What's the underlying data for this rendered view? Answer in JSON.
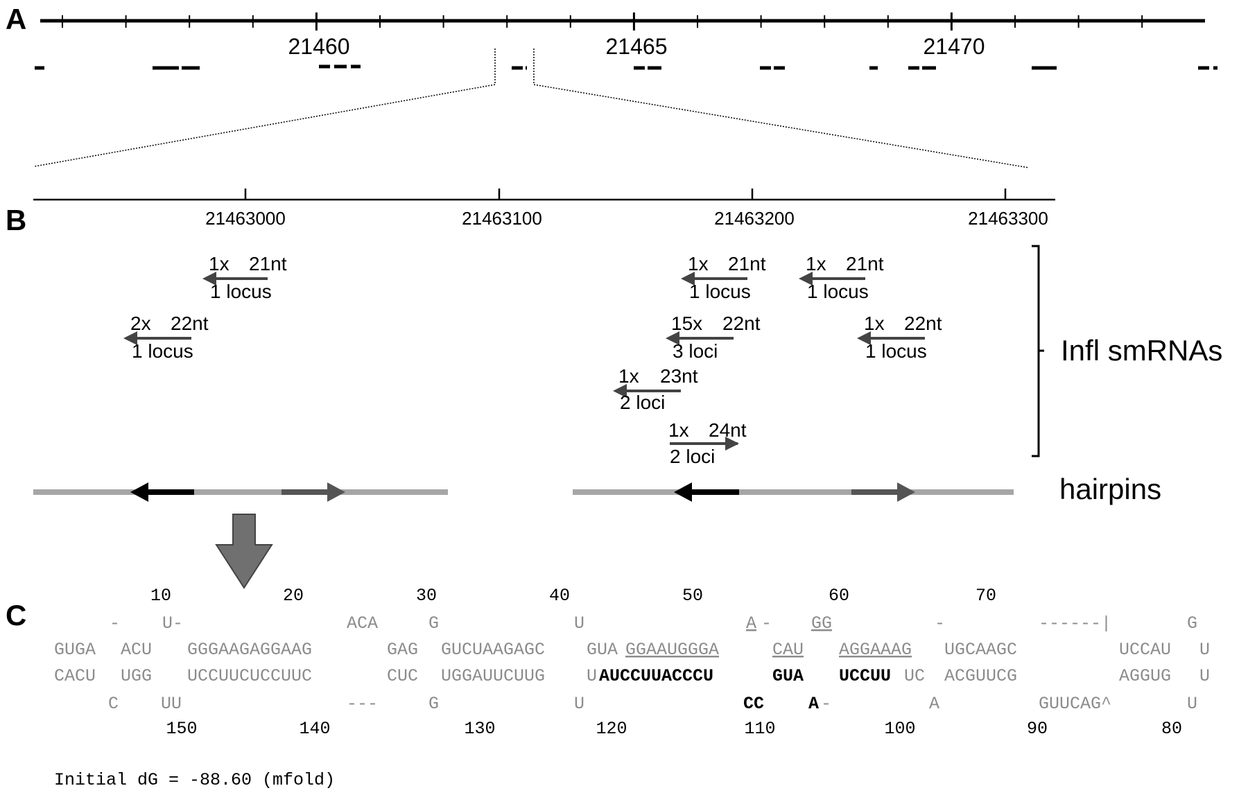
{
  "panel_a": {
    "letter": "A",
    "coordinates": [
      "21460",
      "21465",
      "21470"
    ]
  },
  "panel_b": {
    "letter": "B",
    "coordinates": [
      "21463000",
      "21463100",
      "21463200",
      "21463300"
    ],
    "smrnas": [
      {
        "count": "1x",
        "length": "21nt",
        "loci": "1 locus",
        "direction": "left"
      },
      {
        "count": "2x",
        "length": "22nt",
        "loci": "1 locus",
        "direction": "left"
      },
      {
        "count": "1x",
        "length": "21nt",
        "loci": "1 locus",
        "direction": "left"
      },
      {
        "count": "1x",
        "length": "21nt",
        "loci": "1 locus",
        "direction": "left"
      },
      {
        "count": "15x",
        "length": "22nt",
        "loci": "3 loci",
        "direction": "left"
      },
      {
        "count": "1x",
        "length": "22nt",
        "loci": "1 locus",
        "direction": "left"
      },
      {
        "count": "1x",
        "length": "23nt",
        "loci": "2 loci",
        "direction": "left"
      },
      {
        "count": "1x",
        "length": "24nt",
        "loci": "2 loci",
        "direction": "right"
      }
    ],
    "bracket_label": "Infl smRNAs",
    "hairpins_label": "hairpins"
  },
  "panel_c": {
    "letter": "C",
    "top_numbers": [
      "10",
      "20",
      "30",
      "40",
      "50",
      "60",
      "70"
    ],
    "bottom_numbers": [
      "150",
      "140",
      "130",
      "120",
      "110",
      "100",
      "90",
      "80"
    ],
    "row1": [
      "-",
      "U-",
      "ACA",
      "G",
      "U",
      "A",
      "-",
      "GG",
      "-",
      "------|",
      "G"
    ],
    "row2": [
      "GUGA",
      "ACU",
      "GGGAAGAGGAAG",
      "GAG",
      "GUCUAAGAGC",
      "GUA",
      "GGAAUGGGA",
      "CAU",
      "AGGAAAG",
      "UGCAAGC",
      "UCCAU",
      "U"
    ],
    "row3": [
      "CACU",
      "UGG",
      "UCCUUCUCCUUC",
      "CUC",
      "UGGAUUCUUG",
      "U",
      "AUCCUUACCCU",
      "GUA",
      "UCCUU",
      "UC",
      "ACGUUCG",
      "AGGUG",
      "U"
    ],
    "row4": [
      "C",
      "UU",
      "---",
      "G",
      "U",
      "CC",
      "A",
      "-",
      "A",
      "GUUCAG^",
      "U"
    ],
    "energy": "Initial dG = -88.60 (mfold)"
  },
  "colors": {
    "ink": "#000000",
    "gray_seq": "#8c8c8c",
    "hairpin_bar": "#a6a6a6",
    "arrow_dark": "#555555"
  }
}
